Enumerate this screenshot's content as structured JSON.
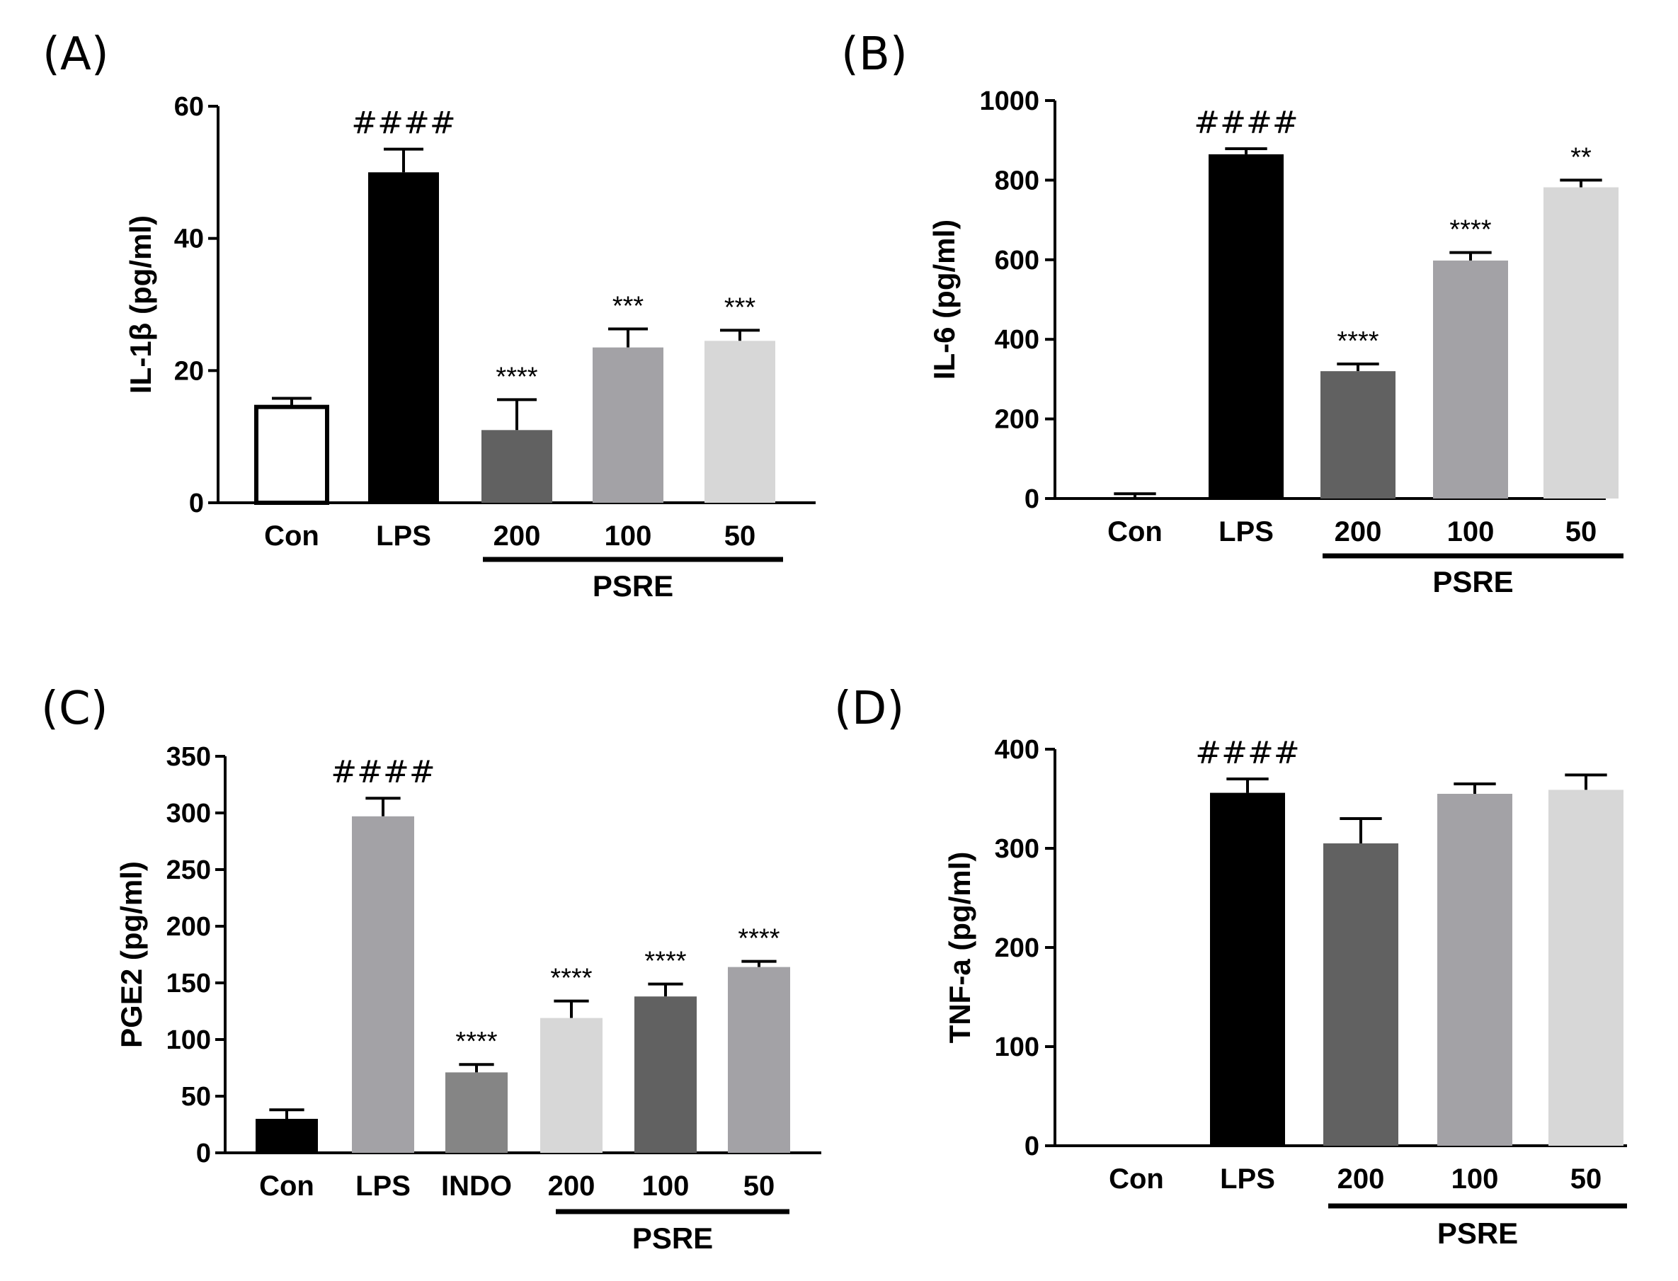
{
  "chart_data": [
    {
      "type": "bar",
      "panel": "(A)",
      "ylabel": "IL-1β  (pg/ml)",
      "ylim": [
        0,
        60
      ],
      "yticks": [
        "0",
        "20",
        "40",
        "60"
      ],
      "categories": [
        "Con",
        "LPS",
        "200",
        "100",
        "50"
      ],
      "values": [
        14.5,
        50,
        11,
        23.5,
        24.5
      ],
      "errors": [
        1.3,
        3.5,
        4.6,
        2.8,
        1.6
      ],
      "colors": [
        "#ffffff",
        "#000000",
        "#616161",
        "#a3a2a6",
        "#d7d7d7"
      ],
      "annotations": [
        "",
        "####",
        "****",
        "***",
        "***"
      ],
      "group": {
        "label": "PSRE",
        "categories": [
          "200",
          "100",
          "50"
        ]
      }
    },
    {
      "type": "bar",
      "panel": "(B)",
      "ylabel": "IL-6  (pg/ml)",
      "ylim": [
        0,
        1000
      ],
      "yticks": [
        "0",
        "200",
        "400",
        "600",
        "800",
        "1000"
      ],
      "categories": [
        "Con",
        "LPS",
        "200",
        "100",
        "50"
      ],
      "values": [
        0,
        865,
        320,
        598,
        782
      ],
      "errors": [
        12,
        14,
        18,
        20,
        18
      ],
      "colors": [
        "#ffffff",
        "#000000",
        "#616161",
        "#a3a2a6",
        "#d7d7d7"
      ],
      "annotations": [
        "",
        "####",
        "****",
        "****",
        "**"
      ],
      "group": {
        "label": "PSRE",
        "categories": [
          "200",
          "100",
          "50"
        ]
      }
    },
    {
      "type": "bar",
      "panel": "(C)",
      "ylabel": "PGE2 (pg/ml)",
      "ylim": [
        0,
        350
      ],
      "yticks": [
        "0",
        "50",
        "100",
        "150",
        "200",
        "250",
        "300",
        "350"
      ],
      "categories": [
        "Con",
        "LPS",
        "INDO",
        "200",
        "100",
        "50"
      ],
      "values": [
        30,
        297,
        71,
        119,
        138,
        164
      ],
      "errors": [
        8,
        16,
        7,
        15,
        11,
        5
      ],
      "colors": [
        "#000000",
        "#a3a2a6",
        "#858585",
        "#d7d7d7",
        "#616161",
        "#a3a2a6"
      ],
      "annotations": [
        "",
        "####",
        "****",
        "****",
        "****",
        "****"
      ],
      "group": {
        "label": "PSRE",
        "categories": [
          "200",
          "100",
          "50"
        ]
      }
    },
    {
      "type": "bar",
      "panel": "(D)",
      "ylabel": "TNF-a  (pg/ml)",
      "ylim": [
        0,
        400
      ],
      "yticks": [
        "0",
        "100",
        "200",
        "300",
        "400"
      ],
      "categories": [
        "Con",
        "LPS",
        "200",
        "100",
        "50"
      ],
      "values": [
        0,
        356,
        305,
        355,
        359
      ],
      "errors": [
        0,
        14,
        25,
        10,
        15
      ],
      "colors": [
        "#ffffff",
        "#000000",
        "#616161",
        "#a3a2a6",
        "#d7d7d7"
      ],
      "annotations": [
        "",
        "####",
        "",
        "",
        ""
      ],
      "group": {
        "label": "PSRE",
        "categories": [
          "200",
          "100",
          "50"
        ]
      }
    }
  ]
}
